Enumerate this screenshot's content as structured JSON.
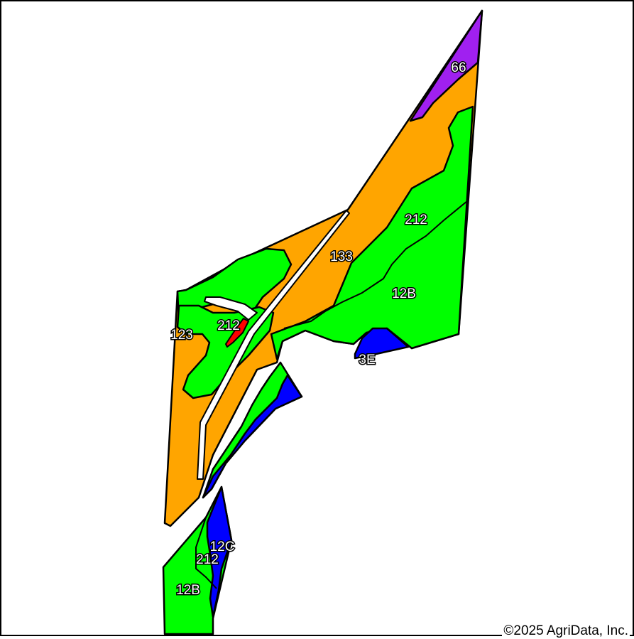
{
  "map": {
    "colors": {
      "orange": "#ffa500",
      "green": "#00ff00",
      "blue": "#0000ff",
      "purple": "#a020f0",
      "red": "#ff0000",
      "outline": "#000000"
    },
    "labels": {
      "l66": "66",
      "l212_top": "212",
      "l133": "133",
      "l12B_top": "12B",
      "l3E": "3E",
      "l212_mid": "212",
      "l123": "123",
      "l12C": "12C",
      "l212_bottom": "212",
      "l12B_bottom": "12B"
    },
    "copyright": "©2025 AgriData, Inc."
  }
}
